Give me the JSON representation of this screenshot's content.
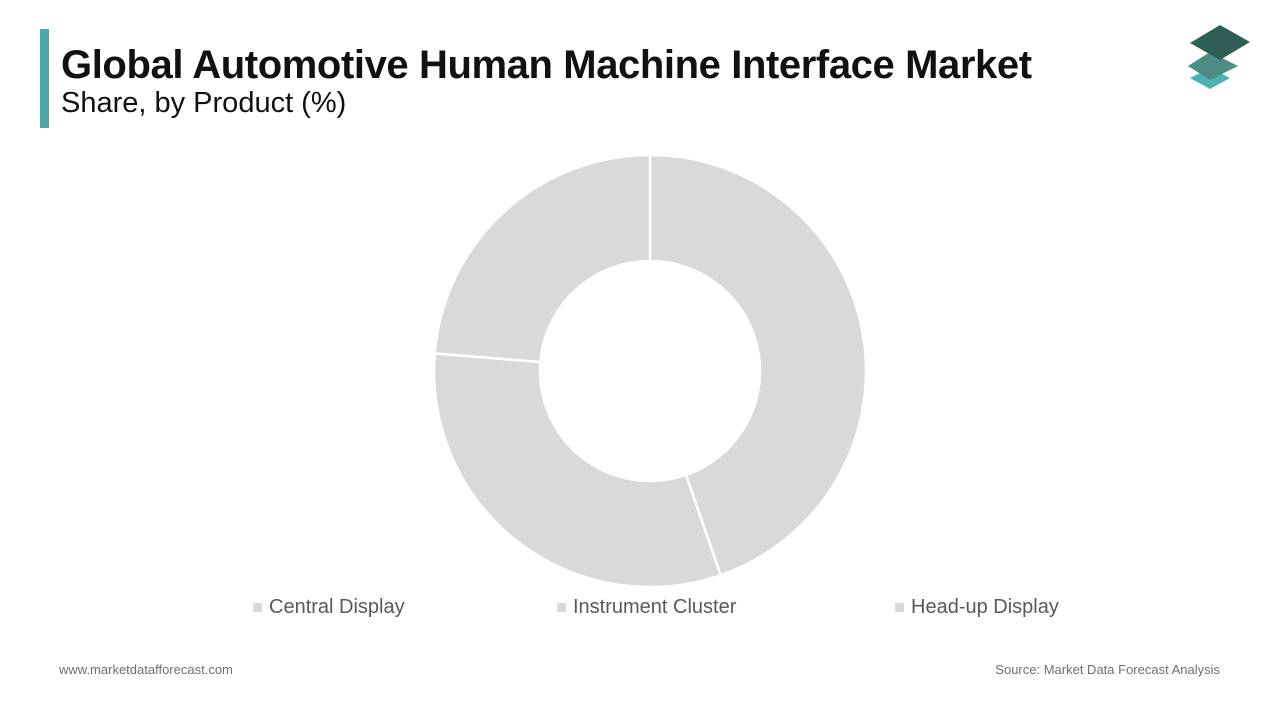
{
  "header": {
    "title": "Global Automotive Human Machine Interface Market",
    "subtitle": "Share, by Product (%)"
  },
  "footer": {
    "website": "www.marketdatafforecast.com",
    "source": "Source: Market Data Forecast Analysis"
  },
  "colors": {
    "accent": "#4aa8a8",
    "slice": "#d9d9d9",
    "logo_top": "#2f5e57",
    "logo_mid": "#4e8b84",
    "logo_bottom": "#4ab3b0"
  },
  "chart_data": {
    "type": "pie",
    "donut": true,
    "title": "Global Automotive Human Machine Interface Market",
    "subtitle": "Share, by Product (%)",
    "categories": [
      "Central Display",
      "Instrument Cluster",
      "Head-up Display"
    ],
    "values": [
      44.7,
      31.6,
      23.7
    ],
    "legend": "bottom",
    "slice_colors": [
      "#d9d9d9",
      "#d9d9d9",
      "#d9d9d9"
    ]
  }
}
